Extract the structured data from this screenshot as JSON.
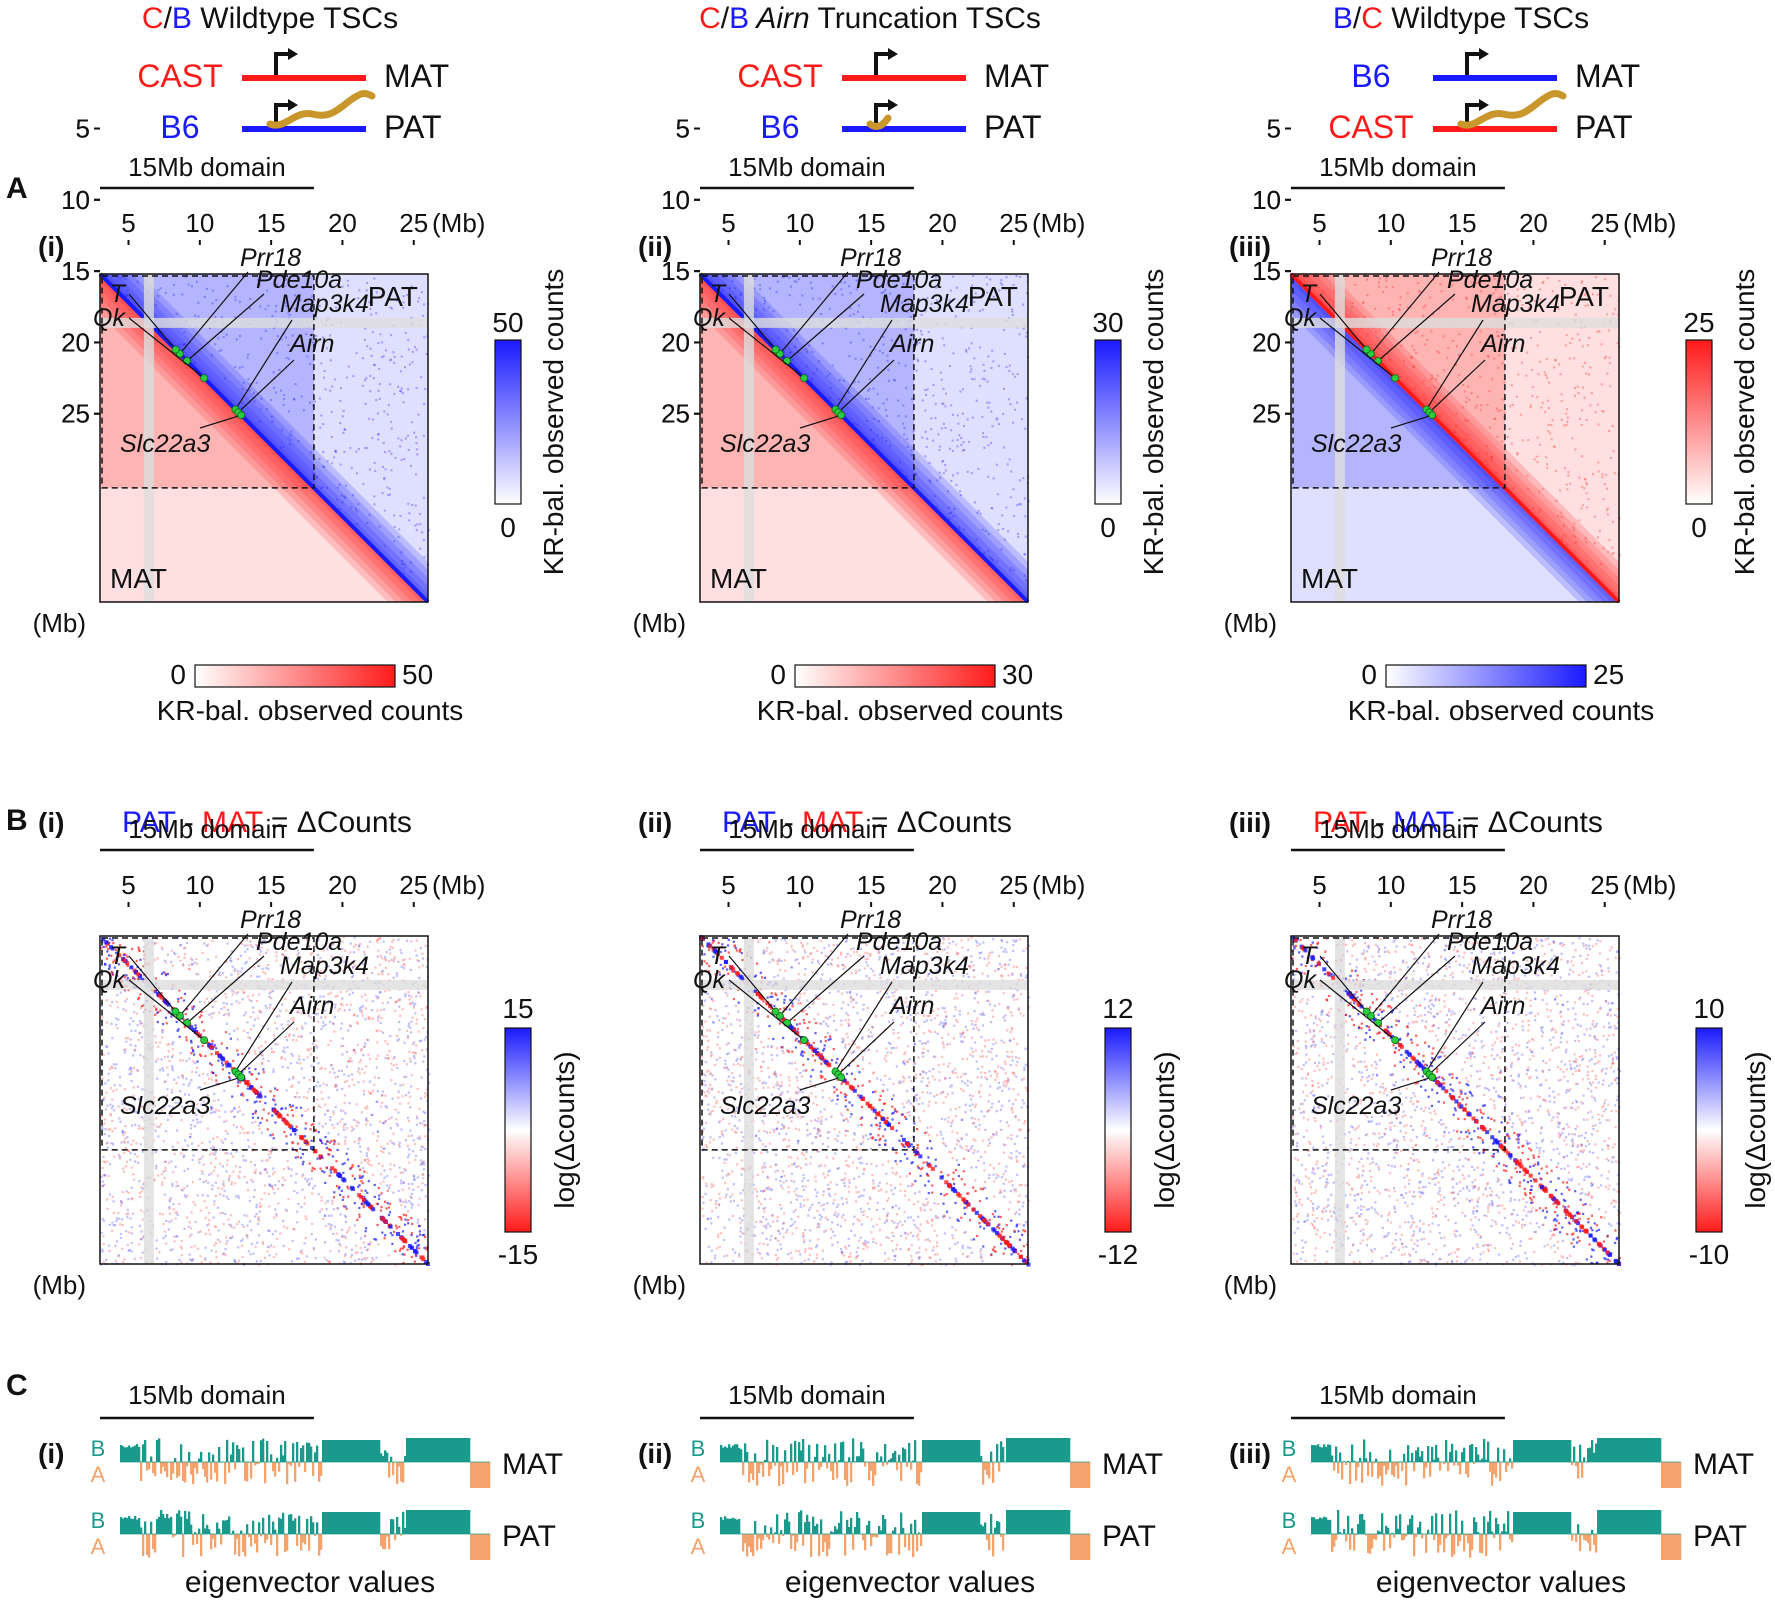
{
  "colors": {
    "red": "#ff1a1a",
    "blue": "#1a1aff",
    "black": "#111111",
    "teal": "#1a9a8c",
    "orange": "#f5a36c",
    "transcript": "#c8962a",
    "green": "#2dcc40",
    "grey": "#dddddd"
  },
  "section_labels": [
    "A",
    "B",
    "C"
  ],
  "panels": [
    {
      "header": {
        "title_a": "C",
        "title_slash": "/",
        "title_b": "B",
        "title_rest": " Wildtype TSCs",
        "title_a_color": "red",
        "title_b_color": "blue",
        "mat_strain": "CAST",
        "mat_strain_color": "red",
        "mat_line_color": "red",
        "pat_strain": "B6",
        "pat_strain_color": "blue",
        "pat_line_color": "blue",
        "transcript": "long",
        "mat_label": "MAT",
        "pat_label": "PAT"
      },
      "A": {
        "roman": "(i)",
        "upper_label": "PAT",
        "lower_label": "MAT",
        "upper_color": "blue",
        "lower_color": "red",
        "upper_cbar": {
          "min": "0",
          "max": "50",
          "label": "KR-bal. observed counts"
        },
        "lower_cbar": {
          "min": "0",
          "max": "50",
          "label": "KR-bal. observed counts"
        }
      },
      "B": {
        "roman": "(i)",
        "eq_left": "PAT",
        "eq_left_color": "blue",
        "eq_minus": " - ",
        "eq_right": "MAT",
        "eq_right_color": "red",
        "eq_rest": " = ΔCounts",
        "cbar": {
          "max": "15",
          "min": "-15",
          "label": "log(Δcounts)"
        }
      },
      "C": {
        "roman": "(i)",
        "seed": 3
      }
    },
    {
      "header": {
        "title_a": "C",
        "title_slash": "/",
        "title_b": "B",
        "title_italic": " Airn",
        "title_rest": " Truncation TSCs",
        "title_a_color": "red",
        "title_b_color": "blue",
        "mat_strain": "CAST",
        "mat_strain_color": "red",
        "mat_line_color": "red",
        "pat_strain": "B6",
        "pat_strain_color": "blue",
        "pat_line_color": "blue",
        "transcript": "short",
        "mat_label": "MAT",
        "pat_label": "PAT"
      },
      "A": {
        "roman": "(ii)",
        "upper_label": "PAT",
        "lower_label": "MAT",
        "upper_color": "blue",
        "lower_color": "red",
        "upper_cbar": {
          "min": "0",
          "max": "30",
          "label": "KR-bal. observed counts"
        },
        "lower_cbar": {
          "min": "0",
          "max": "30",
          "label": "KR-bal. observed counts"
        }
      },
      "B": {
        "roman": "(ii)",
        "eq_left": "PAT",
        "eq_left_color": "blue",
        "eq_minus": " - ",
        "eq_right": "MAT",
        "eq_right_color": "red",
        "eq_rest": " = ΔCounts",
        "cbar": {
          "max": "12",
          "min": "-12",
          "label": "log(Δcounts)"
        }
      },
      "C": {
        "roman": "(ii)",
        "seed": 7
      }
    },
    {
      "header": {
        "title_a": "B",
        "title_slash": "/",
        "title_b": "C",
        "title_rest": " Wildtype TSCs",
        "title_a_color": "blue",
        "title_b_color": "red",
        "mat_strain": "B6",
        "mat_strain_color": "blue",
        "mat_line_color": "blue",
        "pat_strain": "CAST",
        "pat_strain_color": "red",
        "pat_line_color": "red",
        "transcript": "long",
        "mat_label": "MAT",
        "pat_label": "PAT"
      },
      "A": {
        "roman": "(iii)",
        "upper_label": "PAT",
        "lower_label": "MAT",
        "upper_color": "red",
        "lower_color": "blue",
        "upper_cbar": {
          "min": "0",
          "max": "25",
          "label": "KR-bal. observed counts"
        },
        "lower_cbar": {
          "min": "0",
          "max": "25",
          "label": "KR-bal. observed counts"
        }
      },
      "B": {
        "roman": "(iii)",
        "eq_left": "PAT",
        "eq_left_color": "red",
        "eq_minus": " - ",
        "eq_right": "MAT",
        "eq_right_color": "blue",
        "eq_rest": " = ΔCounts",
        "cbar": {
          "max": "10",
          "min": "-10",
          "label": "log(Δcounts)"
        }
      },
      "C": {
        "roman": "(iii)",
        "seed": 11
      }
    }
  ],
  "axis": {
    "ticks": [
      "5",
      "10",
      "15",
      "20",
      "25"
    ],
    "tick_values": [
      5,
      10,
      15,
      20,
      25
    ],
    "range_mb": [
      3,
      26
    ],
    "top_unit": "(Mb)",
    "left_unit": "(Mb)",
    "domain_label": "15Mb domain",
    "domain_range_mb": [
      3,
      18
    ]
  },
  "genes": [
    {
      "name": "Prr18",
      "mb": 8.6
    },
    {
      "name": "T",
      "mb": 8.3
    },
    {
      "name": "Pde10a",
      "mb": 9.1
    },
    {
      "name": "Qk",
      "mb": 10.3
    },
    {
      "name": "Map3k4",
      "mb": 12.5
    },
    {
      "name": "Airn",
      "mb": 12.7
    },
    {
      "name": "Slc22a3",
      "mb": 12.9
    }
  ],
  "eigen": {
    "mat_label": "MAT",
    "pat_label": "PAT",
    "b_label": "B",
    "a_label": "A",
    "caption": "eigenvector values"
  }
}
